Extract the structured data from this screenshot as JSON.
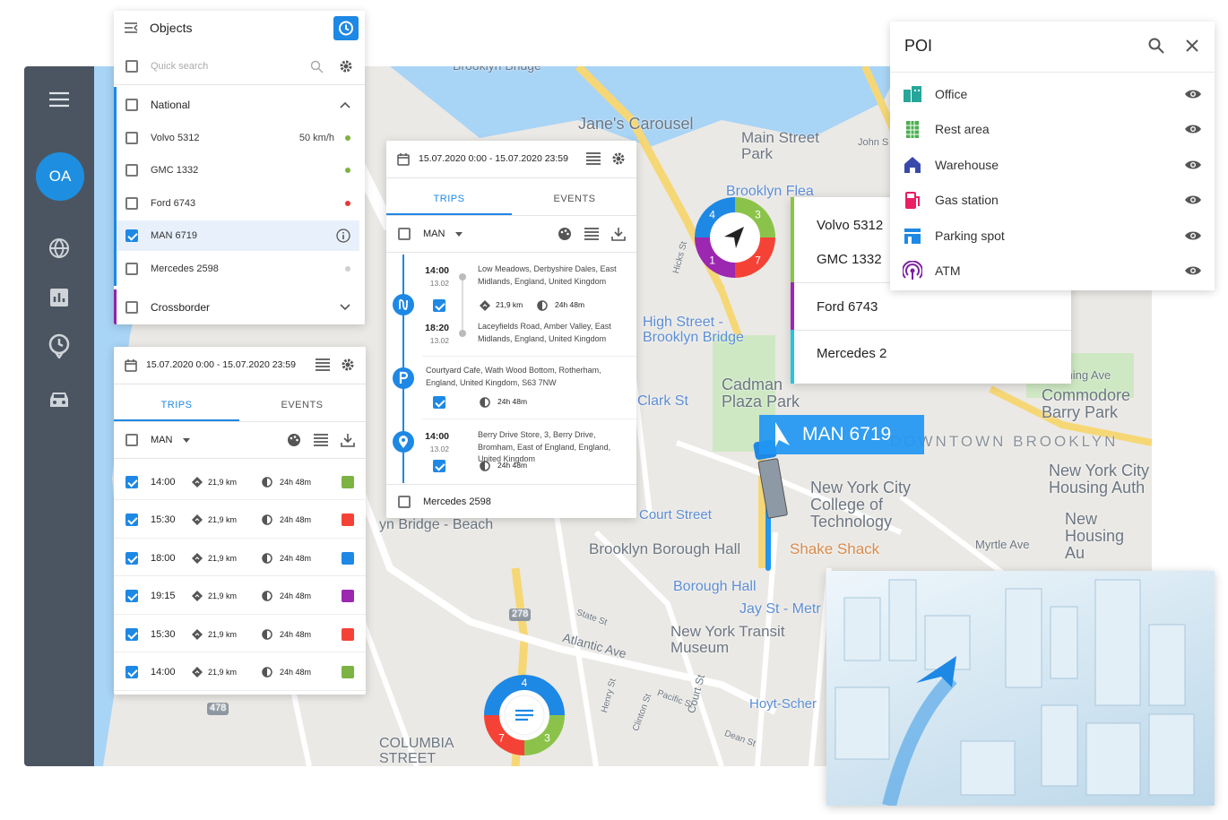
{
  "sidebar": {
    "avatar": "OA"
  },
  "objects_panel": {
    "title": "Objects",
    "search_placeholder": "Quick search",
    "groups": [
      {
        "name": "National",
        "color": "#1e88e5",
        "items": [
          {
            "name": "Volvo 5312",
            "speed": "50 km/h",
            "status_color": "#7cb342",
            "checked": false
          },
          {
            "name": "GMC 1332",
            "status_color": "#7cb342",
            "checked": false
          },
          {
            "name": "Ford 6743",
            "status_color": "#e53935",
            "checked": false
          },
          {
            "name": "MAN 6719",
            "checked": true,
            "selected": true
          },
          {
            "name": "Mercedes 2598",
            "status_color": "#cfcfcf",
            "checked": false
          }
        ]
      },
      {
        "name": "Crossborder",
        "color": "#8e24aa",
        "items": []
      }
    ]
  },
  "trips_panel": {
    "date_range": "15.07.2020 0:00 - 15.07.2020 23:59",
    "tabs": [
      "TRIPS",
      "EVENTS"
    ],
    "filter": "MAN",
    "rows": [
      {
        "time": "14:00",
        "distance": "21,9 km",
        "duration": "24h 48m",
        "color": "#7cb342"
      },
      {
        "time": "15:30",
        "distance": "21,9 km",
        "duration": "24h 48m",
        "color": "#f44336"
      },
      {
        "time": "18:00",
        "distance": "21,9 km",
        "duration": "24h 48m",
        "color": "#1e88e5"
      },
      {
        "time": "19:15",
        "distance": "21,9 km",
        "duration": "24h 48m",
        "color": "#9c27b0"
      },
      {
        "time": "15:30",
        "distance": "21,9 km",
        "duration": "24h 48m",
        "color": "#f44336"
      },
      {
        "time": "14:00",
        "distance": "21,9 km",
        "duration": "24h 48m",
        "color": "#7cb342"
      }
    ]
  },
  "trip_detail": {
    "date_range": "15.07.2020 0:00 - 15.07.2020 23:59",
    "tabs": [
      "TRIPS",
      "EVENTS"
    ],
    "filter": "MAN",
    "trip": {
      "start_time": "14:00",
      "start_date": "13.02",
      "start_address": "Low Meadows, Derbyshire Dales, East Midlands, England, United Kingdom",
      "distance": "21,9 km",
      "duration": "24h 48m",
      "end_time": "18:20",
      "end_date": "13.02",
      "end_address": "Laceyfields Road, Amber Valley, East Midlands, England, United Kingdom"
    },
    "parking": {
      "address": "Courtyard Cafe, Wath Wood Bottom, Rotherham, England, United Kingdom, S63 7NW",
      "duration": "24h 48m"
    },
    "stop": {
      "time": "14:00",
      "date": "13.02",
      "address": "Berry Drive Store, 3, Berry Drive, Bromham, East of England, England, United Kingdom",
      "duration": "24h 48m"
    },
    "footer": "Mercedes 2598"
  },
  "poi": {
    "title": "POI",
    "items": [
      {
        "name": "Office",
        "color": "#26a69a"
      },
      {
        "name": "Rest area",
        "color": "#4caf50"
      },
      {
        "name": "Warehouse",
        "color": "#3949ab"
      },
      {
        "name": "Gas station",
        "color": "#e91e63"
      },
      {
        "name": "Parking spot",
        "color": "#1e88e5"
      },
      {
        "name": "ATM",
        "color": "#7b1fa2"
      }
    ]
  },
  "object_legend": [
    {
      "name": "Volvo 5312",
      "color": "#8bc34a"
    },
    {
      "name": "GMC 1332",
      "color": "#8bc34a"
    },
    {
      "name": "Ford 6743",
      "color": "#9c27b0"
    },
    {
      "name": "Mercedes 2",
      "color": "#26c6da"
    }
  ],
  "vehicle_label": "MAN 6719",
  "clusters": [
    {
      "segments": [
        {
          "count": "4",
          "color": "#1e88e5"
        },
        {
          "count": "3",
          "color": "#8bc34a"
        },
        {
          "count": "7",
          "color": "#f44336"
        },
        {
          "count": "1",
          "color": "#9c27b0"
        }
      ]
    },
    {
      "segments": [
        {
          "count": "4",
          "color": "#1e88e5"
        },
        {
          "count": "3",
          "color": "#8bc34a"
        },
        {
          "count": "7",
          "color": "#f44336"
        }
      ]
    }
  ],
  "map_labels": [
    "Brooklyn Bridge",
    "Jane's Carousel",
    "Main Street Park",
    "John S",
    "Brooklyn Flea",
    "High Street - Brooklyn Bridge",
    "Clark St",
    "Cadman Plaza Park",
    "Commodore Barry Park",
    "DOWNTOWN BROOKLYN",
    "Flushing Ave",
    "New York City College of Technology",
    "New York City Housing Auth",
    "New Housing Au",
    "Myrtle Ave",
    "Brooklyn Borough Hall",
    "Shake Shack",
    "Court Street",
    "Borough Hall",
    "Jay St - Metr",
    "New York Transit Museum",
    "Hoyt-Scher",
    "Atlantic Ave",
    "COLUMBIA STREET",
    "278",
    "478",
    "yn Bridge - Beach",
    "Henry St",
    "Hicks St",
    "State St",
    "Pacific St",
    "Court St",
    "Clinton St",
    "Dean St"
  ]
}
